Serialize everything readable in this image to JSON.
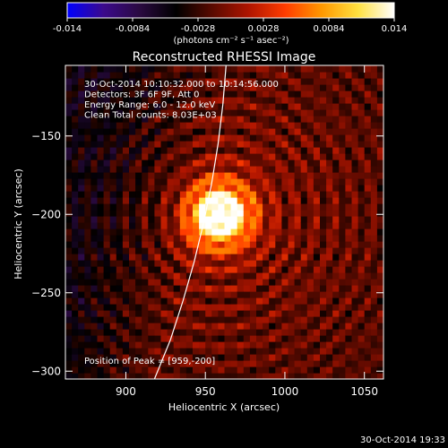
{
  "colorbar": {
    "ticks": [
      "-0.014",
      "-0.0084",
      "-0.0028",
      "0.0028",
      "0.0084",
      "0.014"
    ],
    "unit_label": "(photons cm⁻² s⁻¹ asec⁻²)",
    "range": [
      -0.014,
      0.014
    ],
    "palette": [
      "#0000ff",
      "#3b0a8c",
      "#2a0a40",
      "#000000",
      "#5a0a00",
      "#b01500",
      "#ff3c00",
      "#ff9800",
      "#ffe040",
      "#ffffff"
    ]
  },
  "chart_data": {
    "type": "heatmap",
    "title": "Reconstructed RHESSI Image",
    "xlabel": "Heliocentric X (arcsec)",
    "ylabel": "Heliocentric Y (arcsec)",
    "xlim": [
      862,
      1062
    ],
    "ylim": [
      -305,
      -105
    ],
    "xticks": [
      900,
      950,
      1000,
      1050
    ],
    "yticks": [
      -150,
      -200,
      -250,
      -300
    ],
    "xtick_labels": [
      "900",
      "950",
      "1000",
      "1050"
    ],
    "ytick_labels": [
      "−150",
      "−200",
      "−250",
      "−300"
    ],
    "info_lines": [
      "30-Oct-2014 10:10:32.000 to 10:14:56.000",
      "Detectors: 3F 6F 9F, Att 0",
      "Energy Range: 6.0 - 12.0 keV",
      "Clean     Total counts: 8.03E+03"
    ],
    "peak_label": "Position of Peak = [959,-200]",
    "peak": [
      959,
      -200
    ],
    "limb_curve": [
      [
        918,
        -305
      ],
      [
        928,
        -280
      ],
      [
        936,
        -255
      ],
      [
        943,
        -230
      ],
      [
        949,
        -205
      ],
      [
        954,
        -180
      ],
      [
        958,
        -155
      ],
      [
        961,
        -130
      ],
      [
        963,
        -105
      ]
    ],
    "source_sigma_arcsec": 14
  },
  "footer_timestamp": "30-Oct-2014 19:33"
}
